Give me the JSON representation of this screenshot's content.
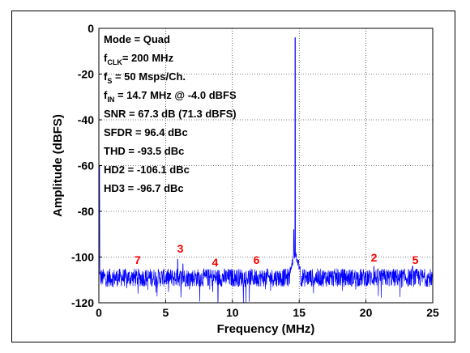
{
  "chart_data": {
    "type": "line",
    "title": "",
    "xlabel": "Frequency (MHz)",
    "ylabel": "Amplitude (dBFS)",
    "xlim": [
      0,
      25
    ],
    "ylim": [
      -120,
      0
    ],
    "xticks": [
      "0",
      "5",
      "10",
      "15",
      "20",
      "25"
    ],
    "yticks": [
      "0",
      "-20",
      "-40",
      "-60",
      "-80",
      "-100",
      "-120"
    ],
    "grid": true,
    "colors": {
      "spectrum": "#0000ff",
      "harmonic_labels": "#ff0000",
      "axes": "#000000"
    },
    "annotations": {
      "mode": "Mode = Quad",
      "fclk_pre": "f",
      "fclk_sub": "CLK",
      "fclk_post": "= 200 MHz",
      "fs_pre": "f",
      "fs_sub": "S",
      "fs_post": " = 50 Msps/Ch.",
      "fin_pre": "f",
      "fin_sub": "IN",
      "fin_post": " = 14.7 MHz @ -4.0 dBFS",
      "snr": "SNR = 67.3 dB (71.3 dBFS)",
      "sfdr": "SFDR = 96.4 dBc",
      "thd": "THD = -93.5 dBc",
      "hd2": "HD2 = -106.1 dBc",
      "hd3": "HD3 = -96.7 dBc"
    },
    "noise_floor": [
      -113,
      -105
    ],
    "fundamental": {
      "x": 14.7,
      "y": -4.0
    },
    "spurs": [
      {
        "x": 0.05,
        "y": -60
      },
      {
        "x": 14.55,
        "y": -100
      },
      {
        "x": 14.85,
        "y": -101
      },
      {
        "x": 14.6,
        "y": -88
      },
      {
        "x": 5.9,
        "y": -101
      },
      {
        "x": 6.3,
        "y": -103
      },
      {
        "x": 20.6,
        "y": -104
      },
      {
        "x": 23.5,
        "y": -104
      }
    ],
    "harmonic_labels": [
      {
        "label": "7",
        "x": 2.9,
        "y": -103
      },
      {
        "label": "3",
        "x": 6.1,
        "y": -98
      },
      {
        "label": "4",
        "x": 8.7,
        "y": -104
      },
      {
        "label": "6",
        "x": 11.8,
        "y": -103
      },
      {
        "label": "2",
        "x": 20.6,
        "y": -102
      },
      {
        "label": "5",
        "x": 23.7,
        "y": -103
      }
    ]
  }
}
